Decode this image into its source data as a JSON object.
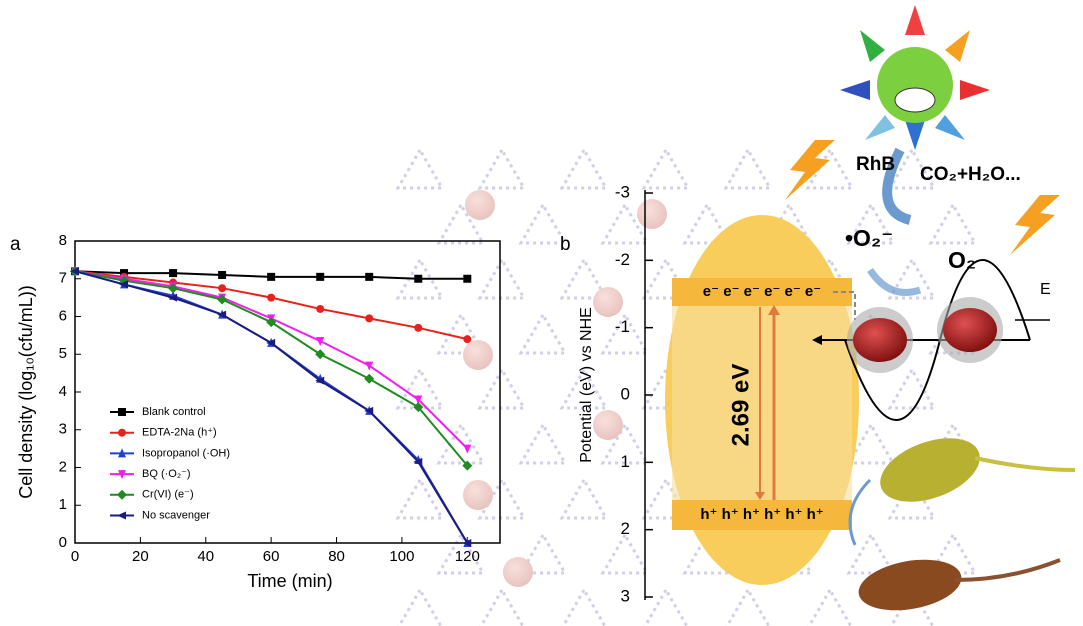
{
  "chart_data": {
    "type": "line",
    "panel_label": "a",
    "x_label": "Time (min)",
    "y_label": "Cell density (log₁₀(cfu/mL))",
    "x": [
      0,
      15,
      30,
      45,
      60,
      75,
      90,
      105,
      120
    ],
    "series": [
      {
        "name": "Blank control",
        "color": "#000000",
        "marker": "square",
        "values": [
          7.2,
          7.15,
          7.15,
          7.1,
          7.05,
          7.05,
          7.05,
          7.0,
          7.0
        ]
      },
      {
        "name": "EDTA-2Na (h⁺)",
        "color": "#e8211c",
        "marker": "circle",
        "values": [
          7.2,
          7.05,
          6.9,
          6.75,
          6.5,
          6.2,
          5.95,
          5.7,
          5.4
        ]
      },
      {
        "name": "Isopropanol (·OH)",
        "color": "#1f3fd8",
        "marker": "triangle-up",
        "values": [
          7.2,
          6.85,
          6.55,
          6.05,
          5.3,
          4.35,
          3.5,
          2.2,
          0
        ]
      },
      {
        "name": "BQ (·O₂⁻)",
        "color": "#f01ef0",
        "marker": "triangle-down",
        "values": [
          7.2,
          7.0,
          6.8,
          6.5,
          5.95,
          5.35,
          4.7,
          3.8,
          2.5
        ]
      },
      {
        "name": "Cr(VI) (e⁻)",
        "color": "#1e8c1e",
        "marker": "diamond",
        "values": [
          7.2,
          6.95,
          6.75,
          6.45,
          5.85,
          5.0,
          4.35,
          3.6,
          2.05
        ]
      },
      {
        "name": "No scavenger",
        "color": "#1c1c80",
        "marker": "triangle-left",
        "values": [
          7.2,
          6.85,
          6.5,
          6.05,
          5.3,
          4.3,
          3.5,
          2.15,
          0
        ]
      }
    ],
    "xlim": [
      0,
      130
    ],
    "xticks": [
      0,
      20,
      40,
      60,
      80,
      100,
      120
    ],
    "ylim": [
      0,
      8
    ],
    "yticks": [
      0,
      1,
      2,
      3,
      4,
      5,
      6,
      7,
      8
    ],
    "legend": "lower left"
  },
  "diagram": {
    "panel_label": "b",
    "potential_axis": {
      "label": "Potential (eV) vs NHE",
      "ticks": [
        -3,
        -2,
        -1,
        0,
        1,
        2,
        3
      ]
    },
    "electrons": "e⁻ e⁻ e⁻ e⁻ e⁻ e⁻",
    "holes": "h⁺ h⁺ h⁺ h⁺ h⁺ h⁺",
    "band_gap": "2.69 eV",
    "reactant": "RhB",
    "products": "CO₂+H₂O...",
    "superoxide": "•O₂⁻",
    "oxygen": "O₂",
    "field": "E"
  }
}
